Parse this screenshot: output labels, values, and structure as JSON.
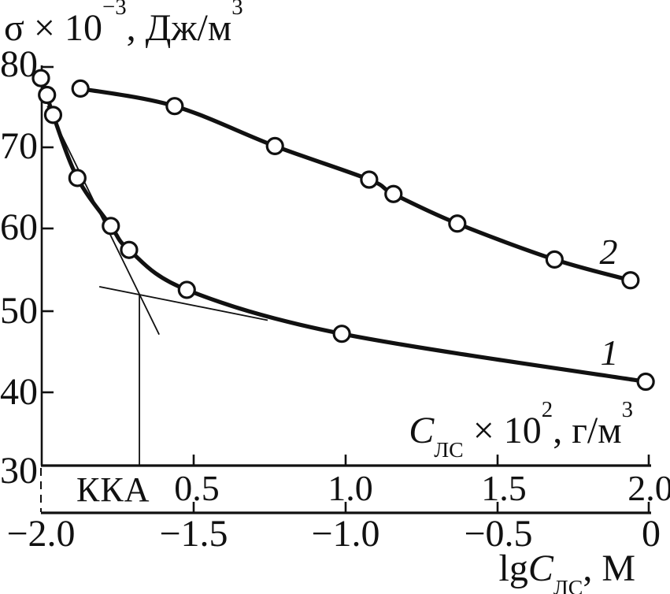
{
  "figure_titles": {
    "y_axis_title": {
      "sigma": "σ",
      "times": " × 10",
      "sup": "−3",
      "units": ", Дж/м",
      "sup2": "3"
    },
    "inner_axis_title": {
      "c": "С",
      "sub": "ЛС",
      "times": " × 10",
      "sup": "2",
      "units": ", г/м",
      "sup2": "3"
    },
    "bottom_axis_title": {
      "lg": "lg",
      "c": "С",
      "sub": "ЛС",
      "units": ", М"
    },
    "kka_label": "ККА",
    "curve1_label": "1",
    "curve2_label": "2"
  },
  "chart_data": {
    "type": "line",
    "title": "",
    "grid": false,
    "legend": "none (curves numbered 1 and 2 on plot)",
    "y_axis": {
      "label": "σ × 10⁻³, Дж/м³",
      "range": [
        30,
        80
      ],
      "ticks": [
        80,
        70,
        60,
        50,
        40,
        30
      ],
      "tick_labels": [
        "80",
        "70",
        "60",
        "50",
        "40",
        "30"
      ]
    },
    "x_axis": {
      "label": "lgСЛС, М",
      "range": [
        -2.0,
        0
      ],
      "ticks": [
        -2.0,
        -1.5,
        -1.0,
        -0.5,
        0
      ],
      "tick_labels": [
        "−2.0",
        "−1.5",
        "−1.0",
        "−0.5",
        "0"
      ]
    },
    "x_axis_secondary": {
      "label": "СЛС × 10², г/м³",
      "ticks": [
        0.5,
        1.0,
        1.5,
        2.0
      ],
      "tick_labels": [
        "0.5",
        "1.0",
        "1.5",
        "2.0"
      ]
    },
    "series": [
      {
        "name": "1",
        "marker": "open-circle",
        "x": [
          -2.0,
          -1.98,
          -1.96,
          -1.88,
          -1.77,
          -1.71,
          -1.52,
          -1.01,
          -0.01
        ],
        "y": [
          78.5,
          76.4,
          73.9,
          66.0,
          60.0,
          57.0,
          52.0,
          46.5,
          40.5
        ]
      },
      {
        "name": "2",
        "marker": "open-circle",
        "x": [
          -1.87,
          -1.56,
          -1.23,
          -0.92,
          -0.84,
          -0.63,
          -0.31,
          -0.06
        ],
        "y": [
          77.2,
          75.0,
          70.0,
          65.8,
          64.0,
          60.3,
          55.8,
          53.2
        ]
      }
    ],
    "annotations": {
      "kka_x_lg": -1.68,
      "tangent_steep": [
        [
          -1.979,
          75.0
        ],
        [
          -1.611,
          46.4
        ]
      ],
      "tangent_shallow": [
        [
          -1.808,
          52.4
        ],
        [
          -1.254,
          48.2
        ]
      ],
      "kka_drop_line": [
        [
          -1.676,
          51.4
        ],
        [
          -1.676,
          30.0
        ]
      ]
    }
  }
}
